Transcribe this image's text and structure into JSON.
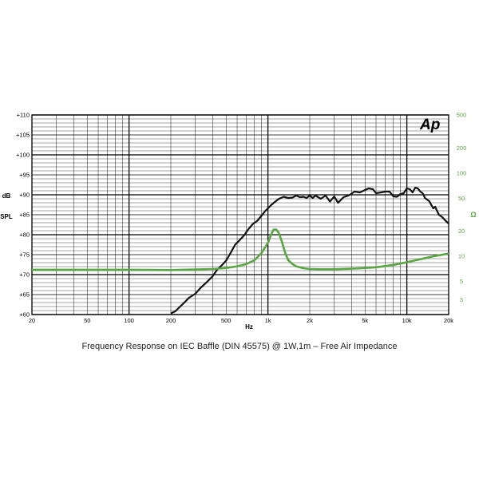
{
  "chart_data": {
    "type": "line",
    "title": "Frequency Response on IEC Baffle (DIN 45575)  @ 1W,1m – Free  Air Impedance",
    "logo": "Ap",
    "xlabel": "Hz",
    "ylabel_left": [
      "dB",
      "SPL"
    ],
    "ylabel_right": "Ω",
    "x_scale": "log",
    "xlim": [
      20,
      20000
    ],
    "ylim_left": [
      60,
      110
    ],
    "ylim_right": [
      2,
      500
    ],
    "y_right_scale": "log",
    "x_ticks": [
      {
        "v": 20,
        "label": "20"
      },
      {
        "v": 50,
        "label": "50"
      },
      {
        "v": 100,
        "label": "100"
      },
      {
        "v": 200,
        "label": "200"
      },
      {
        "v": 500,
        "label": "500"
      },
      {
        "v": 1000,
        "label": "1k"
      },
      {
        "v": 2000,
        "label": "2k"
      },
      {
        "v": 5000,
        "label": "5k"
      },
      {
        "v": 10000,
        "label": "10k"
      },
      {
        "v": 20000,
        "label": "20k"
      }
    ],
    "y_left_ticks": [
      {
        "v": 60,
        "label": "+60"
      },
      {
        "v": 65,
        "label": "+65"
      },
      {
        "v": 70,
        "label": "+70"
      },
      {
        "v": 75,
        "label": "+75"
      },
      {
        "v": 80,
        "label": "+80"
      },
      {
        "v": 85,
        "label": "+85"
      },
      {
        "v": 90,
        "label": "+90"
      },
      {
        "v": 95,
        "label": "+95"
      },
      {
        "v": 100,
        "label": "+100"
      },
      {
        "v": 105,
        "label": "+105"
      },
      {
        "v": 110,
        "label": "+110"
      }
    ],
    "y_right_ticks": [
      {
        "v": 3,
        "label": "3"
      },
      {
        "v": 5,
        "label": "5"
      },
      {
        "v": 10,
        "label": "10"
      },
      {
        "v": 20,
        "label": "20"
      },
      {
        "v": 50,
        "label": "50"
      },
      {
        "v": 100,
        "label": "100"
      },
      {
        "v": 200,
        "label": "200"
      },
      {
        "v": 500,
        "label": "500"
      }
    ],
    "grid": true,
    "colors": {
      "spl": "#111111",
      "impedance": "#5aa544",
      "grid": "#000000"
    },
    "series": [
      {
        "axis": "left",
        "x": [
          200,
          215,
          230,
          250,
          270,
          300,
          330,
          360,
          400,
          430,
          470,
          500,
          540,
          580,
          620,
          680,
          720,
          780,
          840,
          900,
          960,
          1000,
          1060,
          1120,
          1200,
          1300,
          1400,
          1500,
          1600,
          1700,
          1800,
          1900,
          2000,
          2100,
          2200,
          2400,
          2600,
          2800,
          3000,
          3200,
          3500,
          3800,
          4200,
          4600,
          5000,
          5300,
          5700,
          6000,
          6500,
          7000,
          7500,
          8000,
          8500,
          9000,
          9500,
          10000,
          10500,
          11000,
          11500,
          12000,
          12500,
          13000,
          13500,
          14500,
          15500,
          16000,
          17000,
          18000,
          19000,
          20000
        ],
        "y": [
          60.3,
          60.8,
          61.8,
          63,
          64.2,
          65.2,
          66.8,
          68,
          69.6,
          71.2,
          72.5,
          73.5,
          75.5,
          77.5,
          78.5,
          80,
          81.3,
          82.7,
          83.5,
          84.8,
          86,
          86.6,
          87.5,
          88.2,
          89,
          89.5,
          89.2,
          89.3,
          89.8,
          89.4,
          89.5,
          89.2,
          89.8,
          89.2,
          89.8,
          89,
          89.8,
          88.3,
          89.6,
          88,
          89.4,
          89.8,
          90.8,
          90.6,
          91.2,
          91.6,
          91.4,
          90.4,
          90.6,
          90.8,
          90.8,
          89.6,
          89.5,
          90.2,
          90.4,
          91.6,
          91.4,
          90.6,
          91.8,
          91.6,
          90.8,
          90.4,
          89.2,
          88.4,
          86.6,
          87,
          85,
          84.4,
          83.5,
          82.8
        ]
      },
      {
        "axis": "right",
        "x": [
          20,
          50,
          100,
          200,
          300,
          400,
          500,
          600,
          700,
          800,
          900,
          1000,
          1050,
          1100,
          1150,
          1200,
          1260,
          1330,
          1400,
          1500,
          1600,
          1800,
          2000,
          2300,
          2600,
          3000,
          4000,
          5000,
          6000,
          7000,
          8000,
          10000,
          12000,
          15000,
          17000,
          20000
        ],
        "y": [
          6.9,
          6.9,
          6.9,
          6.85,
          6.95,
          7.05,
          7.25,
          7.6,
          8.1,
          9,
          11,
          14.5,
          18,
          21,
          21,
          19,
          15,
          11,
          9,
          8.1,
          7.6,
          7.2,
          7.05,
          7,
          7,
          7,
          7.1,
          7.25,
          7.4,
          7.65,
          7.9,
          8.5,
          9.1,
          9.9,
          10.3,
          10.8
        ]
      }
    ]
  }
}
